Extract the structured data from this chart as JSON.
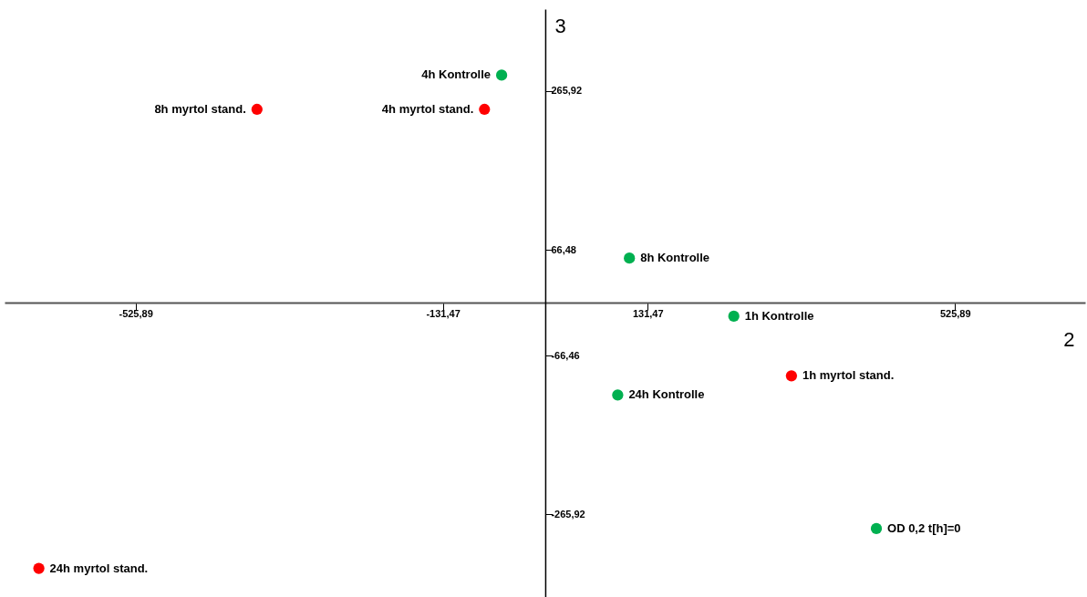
{
  "chart_data": {
    "type": "scatter",
    "xlabel": "2",
    "ylabel": "3",
    "xlim": [
      -694,
      693
    ],
    "ylim": [
      -370,
      369
    ],
    "xticks": [
      {
        "value": -525.89,
        "label": "-525,89"
      },
      {
        "value": -131.47,
        "label": "-131,47"
      },
      {
        "value": 131.47,
        "label": "131,47"
      },
      {
        "value": 525.89,
        "label": "525,89"
      }
    ],
    "yticks": [
      {
        "value": 265.92,
        "label": "265,92"
      },
      {
        "value": 66.48,
        "label": "66,48"
      },
      {
        "value": -66.46,
        "label": "-66,46"
      },
      {
        "value": -265.92,
        "label": "-265,92"
      }
    ],
    "grid": false,
    "marker": "circle",
    "series": [
      {
        "color": "#00b050",
        "x": [
          -56,
          108,
          242,
          93,
          425
        ],
        "values": [
          286,
          56,
          -17,
          -116,
          -284
        ]
      },
      {
        "color": "#ff0000",
        "x": [
          -370,
          -78,
          316,
          -650
        ],
        "values": [
          243,
          243,
          -92,
          -334
        ]
      }
    ],
    "annotations": [
      {
        "text": "4h Kontrolle",
        "x": -56,
        "y": 286
      },
      {
        "text": "8h Kontrolle",
        "x": 108,
        "y": 56
      },
      {
        "text": "1h Kontrolle",
        "x": 242,
        "y": -17
      },
      {
        "text": "24h Kontrolle",
        "x": 93,
        "y": -116
      },
      {
        "text": "OD 0,2 t[h]=0",
        "x": 425,
        "y": -284
      },
      {
        "text": "8h myrtol stand.",
        "x": -370,
        "y": 243
      },
      {
        "text": "4h myrtol stand.",
        "x": -78,
        "y": 243
      },
      {
        "text": "1h myrtol stand.",
        "x": 316,
        "y": -92
      },
      {
        "text": "24h myrtol stand.",
        "x": -650,
        "y": -334
      }
    ]
  }
}
